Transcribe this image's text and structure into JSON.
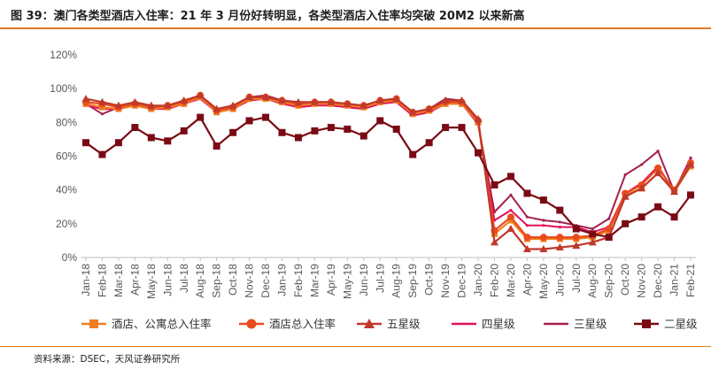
{
  "title": "图 39：澳门各类型酒店入住率：21 年 3 月份好转明显，各类型酒店入住率均突破 20M2 以来新高",
  "source": "资料来源：DSEC，天风证券研究所",
  "chart_data": {
    "type": "line",
    "title": "",
    "xlabel": "",
    "ylabel": "",
    "ylim": [
      0,
      120
    ],
    "ytick_labels": [
      "0%",
      "20%",
      "40%",
      "60%",
      "80%",
      "100%",
      "120%"
    ],
    "grid": false,
    "legend_position": "bottom",
    "x": [
      "Jan-18",
      "Feb-18",
      "Mar-18",
      "Apr-18",
      "May-18",
      "Jun-18",
      "Jul-18",
      "Aug-18",
      "Sep-18",
      "Oct-18",
      "Nov-18",
      "Dec-18",
      "Jan-19",
      "Feb-19",
      "Mar-19",
      "Apr-19",
      "May-19",
      "Jun-19",
      "Jul-19",
      "Aug-19",
      "Sep-19",
      "Oct-19",
      "Nov-19",
      "Dec-19",
      "Jan-20",
      "Feb-20",
      "Mar-20",
      "Apr-20",
      "May-20",
      "Jun-20",
      "Jul-20",
      "Aug-20",
      "Sep-20",
      "Oct-20",
      "Nov-20",
      "Dec-20",
      "Jan-21",
      "Feb-21"
    ],
    "series": [
      {
        "name": "酒店、公寓总入住率",
        "color": "#f07f22",
        "marker": "square",
        "values": [
          91,
          89,
          88,
          90,
          88,
          89,
          91,
          95,
          86,
          88,
          94,
          94,
          92,
          90,
          91,
          91,
          90,
          89,
          92,
          93,
          85,
          87,
          91,
          91,
          80,
          14,
          22,
          11,
          11,
          11,
          11,
          12,
          16,
          37,
          41,
          50,
          39,
          54
        ]
      },
      {
        "name": "酒店总入住率",
        "color": "#e84c1c",
        "marker": "circle",
        "values": [
          92,
          91,
          89,
          91,
          89,
          90,
          92,
          96,
          87,
          89,
          95,
          95,
          93,
          91,
          92,
          92,
          91,
          90,
          93,
          94,
          86,
          88,
          92,
          92,
          81,
          16,
          24,
          12,
          12,
          12,
          12,
          13,
          17,
          38,
          43,
          53,
          40,
          56
        ]
      },
      {
        "name": "五星级",
        "color": "#c0392b",
        "marker": "triangle",
        "values": [
          94,
          92,
          90,
          92,
          90,
          90,
          93,
          96,
          88,
          90,
          95,
          95,
          93,
          92,
          92,
          92,
          91,
          90,
          93,
          94,
          86,
          88,
          93,
          93,
          82,
          9,
          17,
          5,
          5,
          6,
          7,
          9,
          12,
          36,
          41,
          50,
          39,
          55
        ]
      },
      {
        "name": "四星级",
        "color": "#e2105e",
        "marker": "line",
        "values": [
          90,
          88,
          88,
          90,
          88,
          88,
          91,
          94,
          86,
          88,
          93,
          94,
          91,
          89,
          90,
          90,
          89,
          88,
          91,
          92,
          84,
          86,
          91,
          91,
          79,
          22,
          28,
          19,
          19,
          18,
          18,
          15,
          18,
          38,
          44,
          54,
          39,
          58
        ]
      },
      {
        "name": "三星级",
        "color": "#a3214f",
        "marker": "line",
        "values": [
          91,
          85,
          89,
          91,
          89,
          89,
          92,
          96,
          86,
          89,
          95,
          96,
          93,
          90,
          92,
          91,
          90,
          89,
          92,
          93,
          86,
          88,
          94,
          93,
          79,
          27,
          37,
          24,
          22,
          21,
          19,
          17,
          23,
          49,
          55,
          63,
          39,
          59
        ]
      },
      {
        "name": "二星级",
        "color": "#7a0a14",
        "marker": "square",
        "values": [
          68,
          61,
          68,
          77,
          71,
          69,
          75,
          83,
          66,
          74,
          81,
          83,
          74,
          71,
          75,
          77,
          76,
          72,
          81,
          76,
          61,
          68,
          77,
          77,
          62,
          43,
          48,
          38,
          34,
          28,
          17,
          14,
          12,
          20,
          24,
          30,
          24,
          37
        ]
      }
    ]
  }
}
